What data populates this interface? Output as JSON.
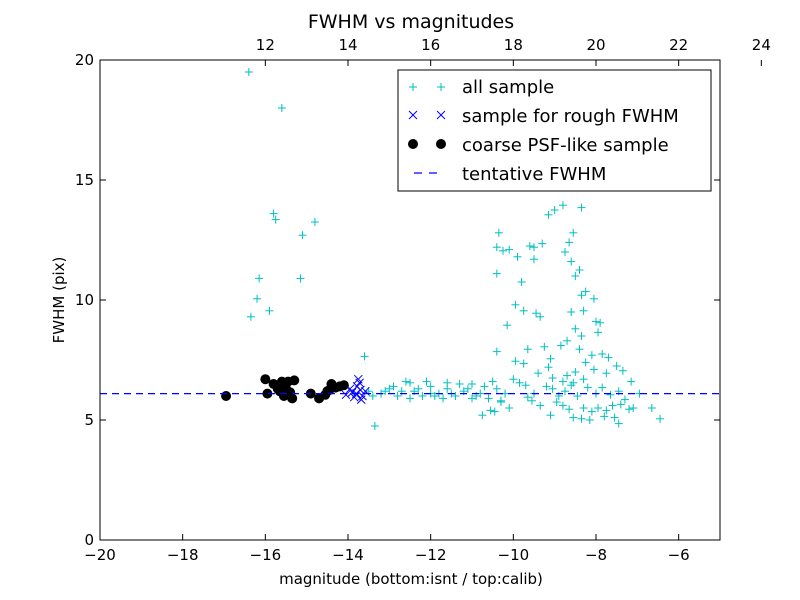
{
  "chart_data": {
    "type": "scatter",
    "title": "FWHM vs magnitudes",
    "xlabel": "magnitude (bottom:isnt / top:calib)",
    "ylabel": "FWHM (pix)",
    "xlim": [
      -20,
      -5
    ],
    "ylim": [
      0,
      20
    ],
    "x_ticks": [
      -20,
      -18,
      -16,
      -14,
      -12,
      -10,
      -8,
      -6
    ],
    "x_tick_labels": [
      "−20",
      "−18",
      "−16",
      "−14",
      "−12",
      "−10",
      "−8",
      "−6"
    ],
    "y_ticks": [
      0,
      5,
      10,
      15,
      20
    ],
    "y_tick_labels": [
      "0",
      "5",
      "10",
      "15",
      "20"
    ],
    "top_axis": {
      "offset": 28,
      "ticks": [
        12,
        14,
        16,
        18,
        20,
        22,
        24
      ],
      "tick_labels": [
        "12",
        "14",
        "16",
        "18",
        "20",
        "22",
        "24"
      ]
    },
    "grid": false,
    "legend_position": "top-right",
    "legend": [
      {
        "label": "all sample",
        "marker": "plus",
        "color": "#00bfbf"
      },
      {
        "label": "sample for rough FWHM",
        "marker": "x",
        "color": "#0000ff"
      },
      {
        "label": "coarse PSF-like sample",
        "marker": "dot",
        "color": "#000000"
      },
      {
        "label": "tentative FWHM",
        "marker": "dash",
        "color": "#0000ff"
      }
    ],
    "series": [
      {
        "name": "all sample",
        "marker": "plus",
        "color": "#00bfbf",
        "points": [
          [
            -16.4,
            19.5
          ],
          [
            -15.6,
            18.0
          ],
          [
            -15.8,
            13.6
          ],
          [
            -15.75,
            13.35
          ],
          [
            -14.8,
            13.25
          ],
          [
            -15.1,
            12.7
          ],
          [
            -16.15,
            10.9
          ],
          [
            -15.15,
            10.9
          ],
          [
            -15.9,
            9.55
          ],
          [
            -16.2,
            10.05
          ],
          [
            -16.35,
            9.3
          ],
          [
            -13.6,
            7.65
          ],
          [
            -13.35,
            4.75
          ],
          [
            -13.5,
            6.2
          ],
          [
            -13.2,
            6.1
          ],
          [
            -13.0,
            6.3
          ],
          [
            -12.8,
            6.0
          ],
          [
            -12.6,
            6.6
          ],
          [
            -12.4,
            6.2
          ],
          [
            -12.2,
            6.0
          ],
          [
            -12.0,
            6.4
          ],
          [
            -11.8,
            6.1
          ],
          [
            -11.6,
            6.3
          ],
          [
            -11.4,
            6.0
          ],
          [
            -11.2,
            6.2
          ],
          [
            -11.0,
            6.5
          ],
          [
            -10.8,
            6.1
          ],
          [
            -10.6,
            5.9
          ],
          [
            -10.4,
            6.3
          ],
          [
            -10.2,
            6.1
          ],
          [
            -13.4,
            6.0
          ],
          [
            -12.9,
            6.4
          ],
          [
            -12.5,
            5.9
          ],
          [
            -12.1,
            6.6
          ],
          [
            -11.7,
            5.9
          ],
          [
            -11.3,
            6.5
          ],
          [
            -10.9,
            6.0
          ],
          [
            -10.5,
            6.6
          ],
          [
            -12.7,
            6.2
          ],
          [
            -12.3,
            6.3
          ],
          [
            -11.5,
            6.1
          ],
          [
            -11.1,
            6.3
          ],
          [
            -10.7,
            6.4
          ],
          [
            -10.3,
            5.8
          ],
          [
            -13.1,
            6.2
          ],
          [
            -12.0,
            6.1
          ],
          [
            -11.9,
            6.0
          ],
          [
            -11.0,
            5.9
          ],
          [
            -10.1,
            5.5
          ],
          [
            -10.75,
            5.2
          ],
          [
            -10.45,
            5.35
          ],
          [
            -10.3,
            5.75
          ],
          [
            -12.5,
            6.55
          ],
          [
            -11.6,
            6.55
          ],
          [
            -10.35,
            12.8
          ],
          [
            -10.4,
            12.2
          ],
          [
            -10.25,
            12.05
          ],
          [
            -10.1,
            12.1
          ],
          [
            -9.6,
            12.25
          ],
          [
            -9.5,
            12.2
          ],
          [
            -9.3,
            12.35
          ],
          [
            -9.15,
            13.55
          ],
          [
            -9.0,
            13.75
          ],
          [
            -8.8,
            13.95
          ],
          [
            -8.35,
            13.85
          ],
          [
            -8.55,
            12.8
          ],
          [
            -8.65,
            12.4
          ],
          [
            -8.75,
            12.0
          ],
          [
            -8.6,
            11.6
          ],
          [
            -8.4,
            11.25
          ],
          [
            -8.5,
            11.0
          ],
          [
            -8.25,
            10.35
          ],
          [
            -8.35,
            10.2
          ],
          [
            -8.05,
            10.05
          ],
          [
            -9.9,
            11.8
          ],
          [
            -10.4,
            11.1
          ],
          [
            -9.5,
            11.7
          ],
          [
            -9.8,
            10.75
          ],
          [
            -9.95,
            9.8
          ],
          [
            -9.75,
            9.55
          ],
          [
            -9.45,
            9.45
          ],
          [
            -9.35,
            9.3
          ],
          [
            -8.6,
            9.5
          ],
          [
            -8.3,
            9.55
          ],
          [
            -8.0,
            9.1
          ],
          [
            -7.9,
            9.05
          ],
          [
            -10.15,
            8.95
          ],
          [
            -8.5,
            8.8
          ],
          [
            -8.35,
            8.5
          ],
          [
            -7.95,
            8.65
          ],
          [
            -8.7,
            8.3
          ],
          [
            -8.85,
            8.1
          ],
          [
            -9.25,
            8.05
          ],
          [
            -9.65,
            7.95
          ],
          [
            -10.4,
            7.85
          ],
          [
            -9.1,
            7.55
          ],
          [
            -8.4,
            7.95
          ],
          [
            -8.1,
            7.7
          ],
          [
            -7.85,
            7.75
          ],
          [
            -7.7,
            7.6
          ],
          [
            -8.25,
            7.4
          ],
          [
            -9.95,
            7.45
          ],
          [
            -9.75,
            7.35
          ],
          [
            -9.15,
            7.2
          ],
          [
            -9.4,
            6.95
          ],
          [
            -8.7,
            6.85
          ],
          [
            -8.5,
            7.0
          ],
          [
            -7.5,
            7.25
          ],
          [
            -7.35,
            7.05
          ],
          [
            -7.75,
            6.95
          ],
          [
            -8.05,
            7.1
          ],
          [
            -8.3,
            6.7
          ],
          [
            -9.2,
            6.4
          ],
          [
            -9.5,
            6.1
          ],
          [
            -9.05,
            6.3
          ],
          [
            -8.9,
            6.0
          ],
          [
            -8.75,
            6.2
          ],
          [
            -8.6,
            6.45
          ],
          [
            -8.45,
            6.0
          ],
          [
            -8.2,
            6.35
          ],
          [
            -8.0,
            6.1
          ],
          [
            -7.85,
            6.35
          ],
          [
            -7.65,
            6.05
          ],
          [
            -7.45,
            6.2
          ],
          [
            -7.3,
            5.85
          ],
          [
            -9.7,
            6.45
          ],
          [
            -9.85,
            6.55
          ],
          [
            -9.65,
            5.95
          ],
          [
            -8.95,
            5.75
          ],
          [
            -8.8,
            5.6
          ],
          [
            -8.65,
            5.45
          ],
          [
            -8.3,
            5.5
          ],
          [
            -8.1,
            5.35
          ],
          [
            -7.95,
            5.5
          ],
          [
            -7.75,
            5.4
          ],
          [
            -7.6,
            5.6
          ],
          [
            -7.4,
            5.65
          ],
          [
            -7.2,
            5.45
          ],
          [
            -7.1,
            5.5
          ],
          [
            -8.55,
            5.1
          ],
          [
            -8.35,
            5.05
          ],
          [
            -8.15,
            5.0
          ],
          [
            -7.8,
            5.15
          ],
          [
            -7.55,
            5.1
          ],
          [
            -7.45,
            4.85
          ],
          [
            -6.65,
            5.5
          ],
          [
            -6.45,
            5.05
          ],
          [
            -6.95,
            6.1
          ],
          [
            -7.15,
            6.6
          ],
          [
            -9.1,
            5.2
          ],
          [
            -9.35,
            5.6
          ],
          [
            -9.55,
            5.8
          ],
          [
            -10.55,
            5.4
          ],
          [
            -10.0,
            6.7
          ],
          [
            -9.05,
            6.75
          ],
          [
            -8.8,
            6.6
          ],
          [
            -8.55,
            6.55
          ]
        ]
      },
      {
        "name": "sample for rough FWHM",
        "marker": "x",
        "color": "#0000ff",
        "points": [
          [
            -13.75,
            6.7
          ],
          [
            -13.72,
            6.55
          ],
          [
            -13.78,
            6.4
          ],
          [
            -13.7,
            6.25
          ],
          [
            -13.8,
            6.1
          ],
          [
            -13.65,
            6.0
          ],
          [
            -13.85,
            5.95
          ],
          [
            -13.9,
            6.15
          ],
          [
            -13.95,
            6.3
          ],
          [
            -13.68,
            5.85
          ],
          [
            -14.05,
            6.05
          ],
          [
            -13.58,
            6.2
          ]
        ]
      },
      {
        "name": "coarse PSF-like sample",
        "marker": "dot",
        "color": "#000000",
        "points": [
          [
            -16.95,
            6.0
          ],
          [
            -16.0,
            6.7
          ],
          [
            -15.8,
            6.5
          ],
          [
            -15.6,
            6.6
          ],
          [
            -15.45,
            6.6
          ],
          [
            -15.3,
            6.65
          ],
          [
            -15.95,
            6.1
          ],
          [
            -15.7,
            6.3
          ],
          [
            -15.55,
            6.0
          ],
          [
            -15.4,
            6.15
          ],
          [
            -15.35,
            5.9
          ],
          [
            -15.5,
            6.3
          ],
          [
            -15.65,
            6.2
          ],
          [
            -14.9,
            6.1
          ],
          [
            -14.7,
            5.9
          ],
          [
            -14.5,
            6.2
          ],
          [
            -14.4,
            6.5
          ],
          [
            -14.3,
            6.35
          ],
          [
            -14.2,
            6.4
          ],
          [
            -14.1,
            6.45
          ],
          [
            -14.55,
            6.05
          ],
          [
            -14.45,
            6.25
          ]
        ]
      },
      {
        "name": "tentative FWHM",
        "marker": "dash",
        "color": "#0000ff",
        "y": 6.1
      }
    ]
  }
}
